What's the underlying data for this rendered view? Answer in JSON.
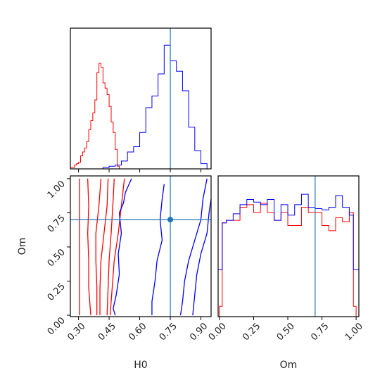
{
  "chart_data": [
    {
      "type": "histogram",
      "panel": "H0 marginal",
      "x_range": [
        0.26,
        0.95
      ],
      "reference_line": 0.75,
      "series": [
        {
          "color": "#ff0000",
          "bin_edges": [
            0.26,
            0.28,
            0.29,
            0.3,
            0.31,
            0.32,
            0.33,
            0.34,
            0.35,
            0.36,
            0.37,
            0.38,
            0.39,
            0.4,
            0.41,
            0.42,
            0.43,
            0.44,
            0.45,
            0.46,
            0.47,
            0.48,
            0.49,
            0.5,
            0.51,
            0.52,
            0.53
          ],
          "counts": [
            0.01,
            0.03,
            0.04,
            0.05,
            0.1,
            0.13,
            0.16,
            0.21,
            0.3,
            0.37,
            0.43,
            0.53,
            0.74,
            0.81,
            0.78,
            0.66,
            0.62,
            0.57,
            0.48,
            0.36,
            0.28,
            0.15,
            0.02,
            0.0,
            0.0,
            0.0
          ]
        },
        {
          "color": "#0000ff",
          "bin_edges": [
            0.3,
            0.42,
            0.45,
            0.48,
            0.51,
            0.54,
            0.57,
            0.6,
            0.63,
            0.66,
            0.69,
            0.72,
            0.75,
            0.78,
            0.81,
            0.84,
            0.87,
            0.9,
            0.93,
            0.95
          ],
          "counts": [
            0.0,
            0.01,
            0.02,
            0.03,
            0.06,
            0.13,
            0.17,
            0.28,
            0.47,
            0.56,
            0.73,
            0.95,
            0.83,
            0.75,
            0.6,
            0.32,
            0.14,
            0.04,
            0.0
          ]
        }
      ],
      "x_ticks": [
        0.3,
        0.45,
        0.6,
        0.75,
        0.9
      ]
    },
    {
      "type": "contour",
      "panel": "H0 vs Om",
      "xlabel": "H0",
      "ylabel": "Om",
      "x_range": [
        0.26,
        0.95
      ],
      "y_range": [
        -0.01,
        1.02
      ],
      "x_ticks": [
        "0.30",
        "0.45",
        "0.60",
        "0.75",
        "0.90"
      ],
      "y_ticks": [
        "0.00",
        "0.25",
        "0.50",
        "0.75",
        "1.00"
      ],
      "reference_point": {
        "H0": 0.75,
        "Om": 0.7
      },
      "red_levels": [
        [
          [
            0.305,
            1.0
          ],
          [
            0.305,
            0.0
          ]
        ],
        [
          [
            0.345,
            1.0
          ],
          [
            0.35,
            0.8
          ],
          [
            0.345,
            0.6
          ],
          [
            0.35,
            0.4
          ],
          [
            0.35,
            0.2
          ],
          [
            0.36,
            0.0
          ]
        ],
        [
          [
            0.41,
            1.0
          ],
          [
            0.4,
            0.8
          ],
          [
            0.385,
            0.6
          ],
          [
            0.385,
            0.4
          ],
          [
            0.39,
            0.2
          ],
          [
            0.39,
            0.0
          ]
        ],
        [
          [
            0.445,
            1.0
          ],
          [
            0.44,
            0.8
          ],
          [
            0.425,
            0.6
          ],
          [
            0.41,
            0.4
          ],
          [
            0.405,
            0.2
          ],
          [
            0.405,
            0.0
          ]
        ],
        [
          [
            0.475,
            1.0
          ],
          [
            0.47,
            0.85
          ],
          [
            0.46,
            0.6
          ],
          [
            0.45,
            0.4
          ],
          [
            0.445,
            0.2
          ],
          [
            0.44,
            0.0
          ]
        ],
        [
          [
            0.525,
            1.0
          ],
          [
            0.51,
            0.8
          ],
          [
            0.495,
            0.6
          ],
          [
            0.475,
            0.4
          ],
          [
            0.465,
            0.2
          ],
          [
            0.455,
            0.0
          ]
        ]
      ],
      "blue_levels": [
        [
          [
            0.56,
            1.0
          ],
          [
            0.53,
            0.9
          ],
          [
            0.52,
            0.82
          ],
          [
            0.5,
            0.75
          ],
          [
            0.51,
            0.6
          ],
          [
            0.495,
            0.45
          ],
          [
            0.5,
            0.3
          ],
          [
            0.485,
            0.15
          ],
          [
            0.47,
            0.05
          ],
          [
            0.48,
            0.0
          ]
        ],
        [
          [
            0.72,
            0.96
          ],
          [
            0.71,
            0.85
          ],
          [
            0.7,
            0.7
          ],
          [
            0.71,
            0.55
          ],
          [
            0.685,
            0.4
          ],
          [
            0.675,
            0.25
          ],
          [
            0.66,
            0.1
          ],
          [
            0.66,
            0.0
          ]
        ],
        [
          [
            0.93,
            1.0
          ],
          [
            0.91,
            0.85
          ],
          [
            0.9,
            0.7
          ],
          [
            0.87,
            0.55
          ],
          [
            0.84,
            0.4
          ],
          [
            0.82,
            0.25
          ],
          [
            0.81,
            0.1
          ],
          [
            0.8,
            0.0
          ]
        ],
        [
          [
            0.95,
            0.85
          ],
          [
            0.94,
            0.75
          ],
          [
            0.93,
            0.6
          ],
          [
            0.9,
            0.45
          ],
          [
            0.88,
            0.3
          ],
          [
            0.87,
            0.15
          ],
          [
            0.86,
            0.0
          ]
        ]
      ]
    },
    {
      "type": "histogram",
      "panel": "Om marginal",
      "xlabel": "Om",
      "x_range": [
        -0.01,
        1.02
      ],
      "reference_line": 0.7,
      "x_ticks": [
        "0.00",
        "0.25",
        "0.50",
        "0.75",
        "1.00"
      ],
      "series": [
        {
          "color": "#ff0000",
          "bin_edges": [
            0.0,
            0.02,
            0.05,
            0.1,
            0.15,
            0.2,
            0.25,
            0.3,
            0.35,
            0.4,
            0.45,
            0.5,
            0.55,
            0.6,
            0.65,
            0.7,
            0.75,
            0.8,
            0.85,
            0.9,
            0.95,
            0.98,
            1.0
          ],
          "counts": [
            0.08,
            0.72,
            0.74,
            0.74,
            0.84,
            0.86,
            0.8,
            0.87,
            0.8,
            0.74,
            0.8,
            0.7,
            0.7,
            0.84,
            0.8,
            0.8,
            0.7,
            0.66,
            0.76,
            0.73,
            0.8,
            0.08
          ]
        },
        {
          "color": "#0000ff",
          "bin_edges": [
            -0.01,
            0.02,
            0.05,
            0.1,
            0.15,
            0.2,
            0.25,
            0.3,
            0.35,
            0.4,
            0.45,
            0.5,
            0.55,
            0.6,
            0.65,
            0.7,
            0.75,
            0.8,
            0.85,
            0.9,
            0.95,
            0.98,
            1.02
          ],
          "counts": [
            0.36,
            0.72,
            0.74,
            0.79,
            0.86,
            0.9,
            0.88,
            0.86,
            0.9,
            0.74,
            0.86,
            0.78,
            0.86,
            0.94,
            0.84,
            0.83,
            0.82,
            0.84,
            0.93,
            0.84,
            0.78,
            0.36
          ]
        }
      ]
    }
  ]
}
